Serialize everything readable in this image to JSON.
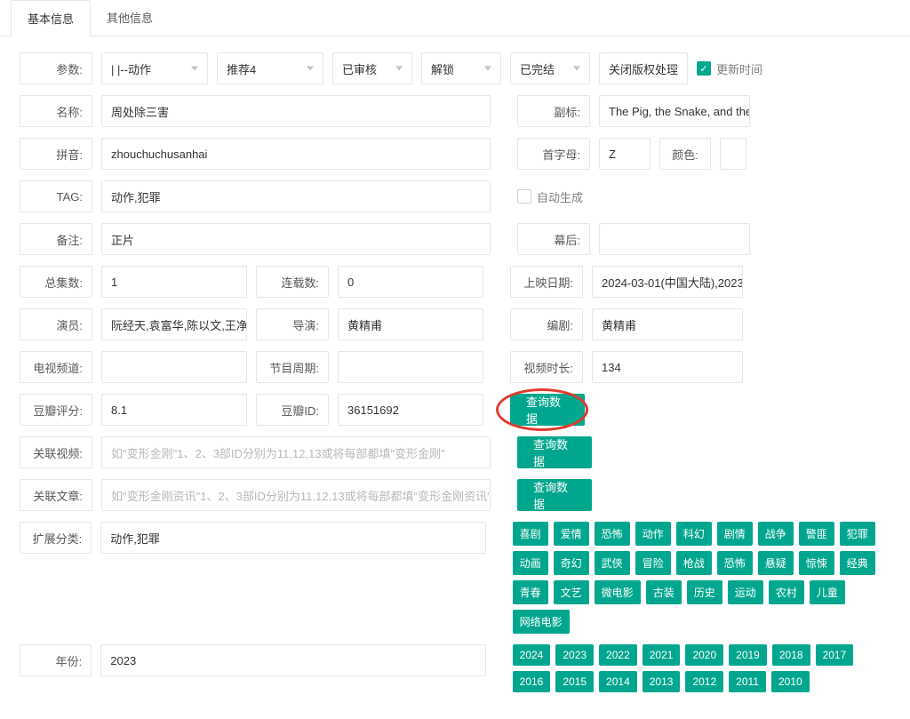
{
  "tabs": {
    "basic": "基本信息",
    "other": "其他信息"
  },
  "row_param": {
    "label": "参数:",
    "select_category": "|  |--动作",
    "select_recommend": "推荐4",
    "select_review": "已审核",
    "select_lock": "解锁",
    "select_status": "已完结",
    "select_copyright": "关闭版权处理",
    "checkbox_update": "更新时间"
  },
  "name": {
    "label": "名称:",
    "value": "周处除三害",
    "sub_label": "副标:",
    "sub_value": "The Pig, the Snake, and the"
  },
  "pinyin": {
    "label": "拼音:",
    "value": "zhouchuchusanhai",
    "initial_label": "首字母:",
    "initial_value": "Z",
    "color_label": "颜色:"
  },
  "tag": {
    "label": "TAG:",
    "value": "动作,犯罪",
    "auto": "自动生成"
  },
  "note": {
    "label": "备注:",
    "value": "正片",
    "behind_label": "幕后:"
  },
  "episodes": {
    "total_label": "总集数:",
    "total_value": "1",
    "serial_label": "连载数:",
    "serial_value": "0",
    "release_label": "上映日期:",
    "release_value": "2024-03-01(中国大陆),2023"
  },
  "people": {
    "actor_label": "演员:",
    "actor_value": "阮经天,袁富华,陈以文,王净,谢",
    "director_label": "导演:",
    "director_value": "黄精甫",
    "writer_label": "编剧:",
    "writer_value": "黄精甫"
  },
  "schedule": {
    "tv_label": "电视频道:",
    "cycle_label": "节目周期:",
    "duration_label": "视频时长:",
    "duration_value": "134"
  },
  "douban": {
    "score_label": "豆瓣评分:",
    "score_value": "8.1",
    "id_label": "豆瓣ID:",
    "id_value": "36151692",
    "query": "查询数据"
  },
  "rel_video": {
    "label": "关联视频:",
    "placeholder": "如\"变形金刚\"1、2、3部ID分别为11,12,13或将每部都填\"变形金刚\"",
    "btn": "查询数据"
  },
  "rel_article": {
    "label": "关联文章:",
    "placeholder": "如\"变形金刚资讯\"1、2、3部ID分别为11,12,13或将每部都填\"变形金刚资讯\"",
    "btn": "查询数据"
  },
  "ext": {
    "label": "扩展分类:",
    "value": "动作,犯罪"
  },
  "year": {
    "label": "年份:",
    "value": "2023"
  },
  "genres": [
    "喜剧",
    "爱情",
    "恐怖",
    "动作",
    "科幻",
    "剧情",
    "战争",
    "警匪",
    "犯罪",
    "动画",
    "奇幻",
    "武侠",
    "冒险",
    "枪战",
    "恐怖",
    "悬疑",
    "惊悚",
    "经典",
    "青春",
    "文艺",
    "微电影",
    "古装",
    "历史",
    "运动",
    "农村",
    "儿童",
    "网络电影"
  ],
  "years": [
    "2024",
    "2023",
    "2022",
    "2021",
    "2020",
    "2019",
    "2018",
    "2017",
    "2016",
    "2015",
    "2014",
    "2013",
    "2012",
    "2011",
    "2010"
  ],
  "colors": {
    "accent": "#00a78e",
    "circle": "#e03a2f"
  }
}
